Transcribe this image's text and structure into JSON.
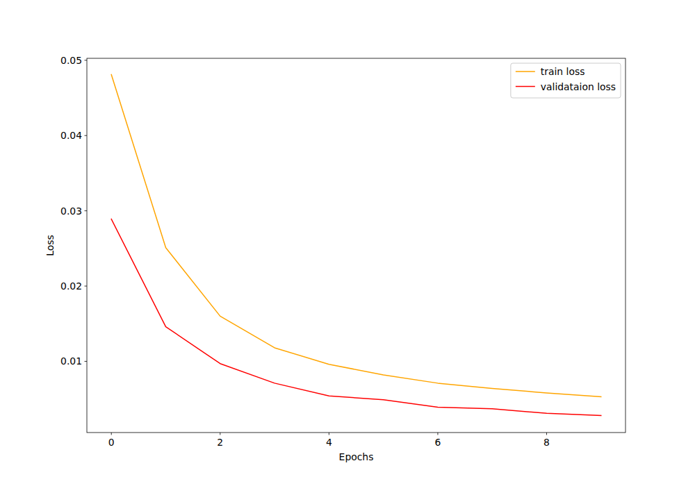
{
  "chart_data": {
    "type": "line",
    "x": [
      0,
      1,
      2,
      3,
      4,
      5,
      6,
      7,
      8,
      9
    ],
    "x_label": "Epochs",
    "y_label": "Loss",
    "series": [
      {
        "name": "train loss",
        "color": "#ffa500",
        "values": [
          0.0481,
          0.0251,
          0.016,
          0.0118,
          0.0096,
          0.0082,
          0.0071,
          0.0064,
          0.0058,
          0.0053
        ]
      },
      {
        "name": "validataion loss",
        "color": "#ff0000",
        "values": [
          0.0289,
          0.0146,
          0.0097,
          0.0071,
          0.0054,
          0.0049,
          0.0039,
          0.0037,
          0.0031,
          0.0028
        ]
      }
    ],
    "xlim": [
      -0.45,
      9.45
    ],
    "ylim": [
      0.00054,
      0.05026
    ],
    "xticks": [
      0,
      2,
      4,
      6,
      8
    ],
    "yticks": [
      0.01,
      0.02,
      0.03,
      0.04,
      0.05
    ],
    "grid": false,
    "legend": "upper right"
  }
}
